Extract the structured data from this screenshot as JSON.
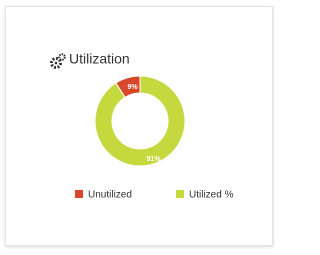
{
  "chart_data": {
    "type": "donut",
    "title": "Utilization",
    "categories": [
      "Unutilized",
      "Utilized %"
    ],
    "values": [
      9,
      91
    ],
    "value_labels": [
      "9%",
      "91%"
    ],
    "colors": [
      "#d9472b",
      "#c5d93f"
    ]
  }
}
